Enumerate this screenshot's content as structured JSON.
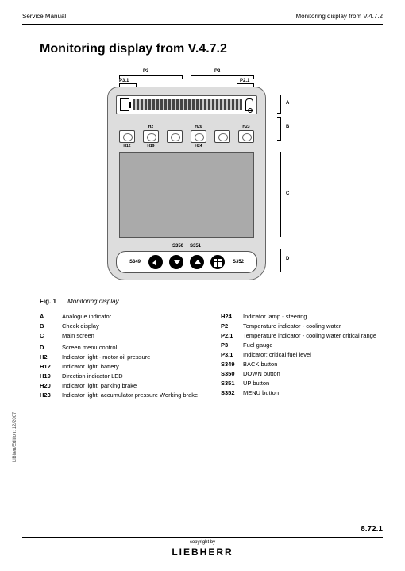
{
  "header": {
    "left": "Service Manual",
    "right": "Monitoring display from V.4.7.2"
  },
  "title": "Monitoring display from V.4.7.2",
  "dims": {
    "P3": "P3",
    "P2": "P2",
    "P3_1": "P3.1",
    "P2_1": "P2.1",
    "A": "A",
    "B": "B",
    "C": "C",
    "D": "D"
  },
  "indicators": {
    "H2": "H2",
    "H20": "H20",
    "H23": "H23",
    "H12": "H12",
    "H19": "H19",
    "H24": "H24"
  },
  "buttons": {
    "S349": "S349",
    "S350": "S350",
    "S351": "S351",
    "S352": "S352"
  },
  "figure": {
    "num": "Fig. 1",
    "caption": "Monitoring display"
  },
  "legend_left": [
    {
      "k": "A",
      "v": "Analogue indicator"
    },
    {
      "k": "B",
      "v": "Check display"
    },
    {
      "k": "C",
      "v": "Main screen"
    },
    {
      "k": "",
      "v": ""
    },
    {
      "k": "D",
      "v": "Screen menu control"
    },
    {
      "k": "H2",
      "v": "Indicator light - motor oil pressure"
    },
    {
      "k": "H12",
      "v": "Indicator light: battery"
    },
    {
      "k": "H19",
      "v": "Direction indicator LED"
    },
    {
      "k": "H20",
      "v": "Indicator light: parking brake"
    },
    {
      "k": "H23",
      "v": "Indicator light: accumulator pressure Working brake"
    }
  ],
  "legend_right": [
    {
      "k": "H24",
      "v": "Indicator lamp - steering"
    },
    {
      "k": "P2",
      "v": "Temperature indicator - cooling water"
    },
    {
      "k": "P2.1",
      "v": "Temperature indicator - cooling water critical range"
    },
    {
      "k": "P3",
      "v": "Fuel gauge"
    },
    {
      "k": "P3.1",
      "v": "Indicator: critical fuel level"
    },
    {
      "k": "S349",
      "v": "BACK button"
    },
    {
      "k": "S350",
      "v": "DOWN button"
    },
    {
      "k": "S351",
      "v": "UP button"
    },
    {
      "k": "S352",
      "v": "MENU button"
    }
  ],
  "side": "LiBl/en/Edition: 12/2007",
  "footer": {
    "page": "8.72.1",
    "copyright": "copyright by",
    "brand": "LIEBHERR"
  }
}
